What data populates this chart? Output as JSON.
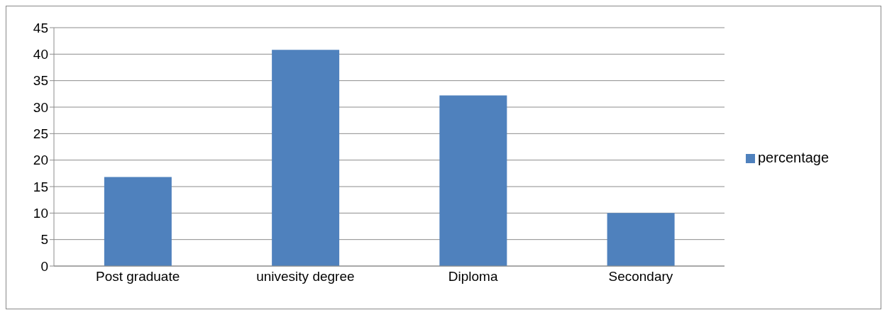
{
  "chart_data": {
    "type": "bar",
    "categories": [
      "Post graduate",
      "univesity degree",
      "Diploma",
      "Secondary"
    ],
    "series": [
      {
        "name": "percentage",
        "color": "#4f81bd",
        "values": [
          16.8,
          40.8,
          32.2,
          10
        ]
      }
    ],
    "ylim": [
      0,
      45
    ],
    "yticks": [
      0,
      5,
      10,
      15,
      20,
      25,
      30,
      35,
      40,
      45
    ],
    "grid": "y",
    "legend": "right"
  }
}
